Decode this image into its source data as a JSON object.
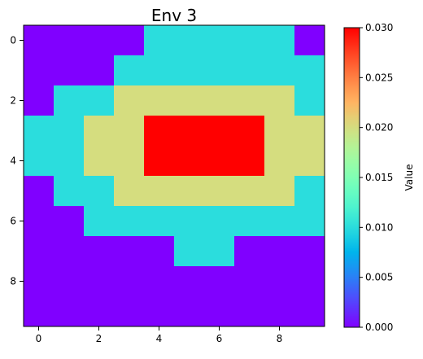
{
  "chart_data": {
    "type": "heatmap",
    "title": "Env 3",
    "xlabel": "",
    "ylabel": "",
    "x_ticks": [
      0,
      2,
      4,
      6,
      8
    ],
    "y_ticks": [
      0,
      2,
      4,
      6,
      8
    ],
    "x_tick_labels": [
      "0",
      "2",
      "4",
      "6",
      "8"
    ],
    "y_tick_labels": [
      "0",
      "2",
      "4",
      "6",
      "8"
    ],
    "grid": false,
    "colormap": "rainbow",
    "colorbar": {
      "label": "Value",
      "range": [
        0.0,
        0.03
      ],
      "ticks": [
        0.0,
        0.005,
        0.01,
        0.015,
        0.02,
        0.025,
        0.03
      ],
      "tick_labels": [
        "0.000",
        "0.005",
        "0.010",
        "0.015",
        "0.020",
        "0.025",
        "0.030"
      ]
    },
    "values": [
      [
        0.0,
        0.0,
        0.0,
        0.0,
        0.01,
        0.01,
        0.01,
        0.01,
        0.01,
        0.0
      ],
      [
        0.0,
        0.0,
        0.0,
        0.01,
        0.01,
        0.01,
        0.01,
        0.01,
        0.01,
        0.01
      ],
      [
        0.0,
        0.01,
        0.01,
        0.02,
        0.02,
        0.02,
        0.02,
        0.02,
        0.02,
        0.01
      ],
      [
        0.01,
        0.01,
        0.02,
        0.02,
        0.03,
        0.03,
        0.03,
        0.03,
        0.02,
        0.02
      ],
      [
        0.01,
        0.01,
        0.02,
        0.02,
        0.03,
        0.03,
        0.03,
        0.03,
        0.02,
        0.02
      ],
      [
        0.0,
        0.01,
        0.01,
        0.02,
        0.02,
        0.02,
        0.02,
        0.02,
        0.02,
        0.01
      ],
      [
        0.0,
        0.0,
        0.01,
        0.01,
        0.01,
        0.01,
        0.01,
        0.01,
        0.01,
        0.01
      ],
      [
        0.0,
        0.0,
        0.0,
        0.0,
        0.0,
        0.01,
        0.01,
        0.0,
        0.0,
        0.0
      ],
      [
        0.0,
        0.0,
        0.0,
        0.0,
        0.0,
        0.0,
        0.0,
        0.0,
        0.0,
        0.0
      ],
      [
        0.0,
        0.0,
        0.0,
        0.0,
        0.0,
        0.0,
        0.0,
        0.0,
        0.0,
        0.0
      ]
    ]
  }
}
